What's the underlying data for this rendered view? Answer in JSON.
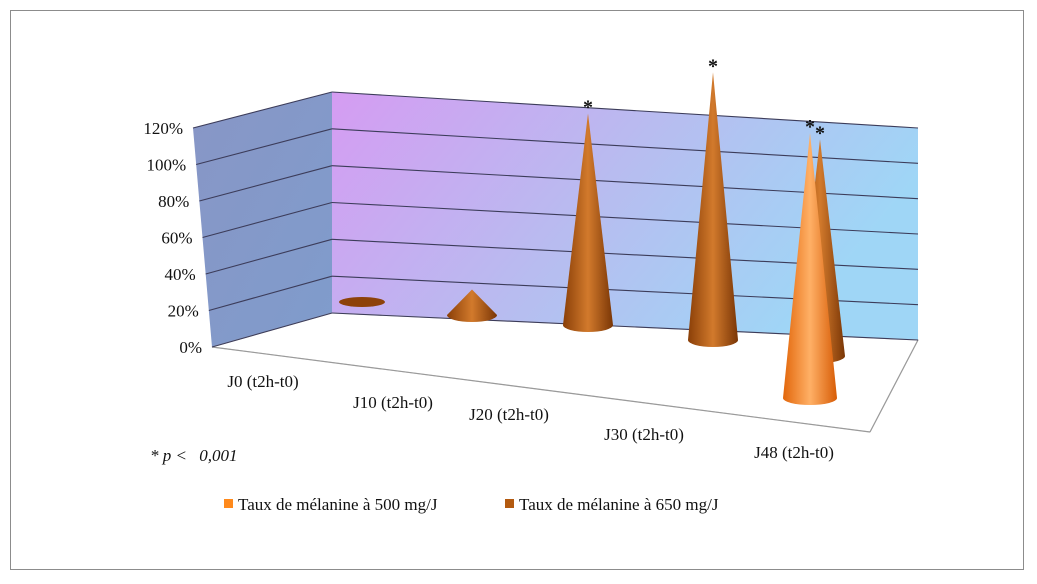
{
  "chart_data": {
    "type": "bar",
    "bar_shape": "cone-3d",
    "categories": [
      "J0 (t2h-t0)",
      "J10 (t2h-t0)",
      "J20 (t2h-t0)",
      "J30 (t2h-t0)",
      "J48 (t2h-t0)"
    ],
    "y_ticks": [
      "0%",
      "20%",
      "40%",
      "60%",
      "80%",
      "100%",
      "120%"
    ],
    "ylim": [
      0,
      120
    ],
    "grid": true,
    "legend_placement": "bottom",
    "series": [
      {
        "name": "Taux de mélanine à 500 mg/J",
        "color": "#ff8a1c",
        "values": [
          0,
          0,
          0,
          0,
          100
        ]
      },
      {
        "name": "Taux de mélanine à 650 mg/J",
        "color": "#b35a10",
        "values": [
          2,
          10,
          83,
          105,
          85
        ]
      }
    ],
    "significance_marker": "*",
    "significant": [
      false,
      false,
      true,
      true,
      true
    ],
    "annotation": {
      "prefix": "* p <",
      "value": "0,001"
    }
  }
}
